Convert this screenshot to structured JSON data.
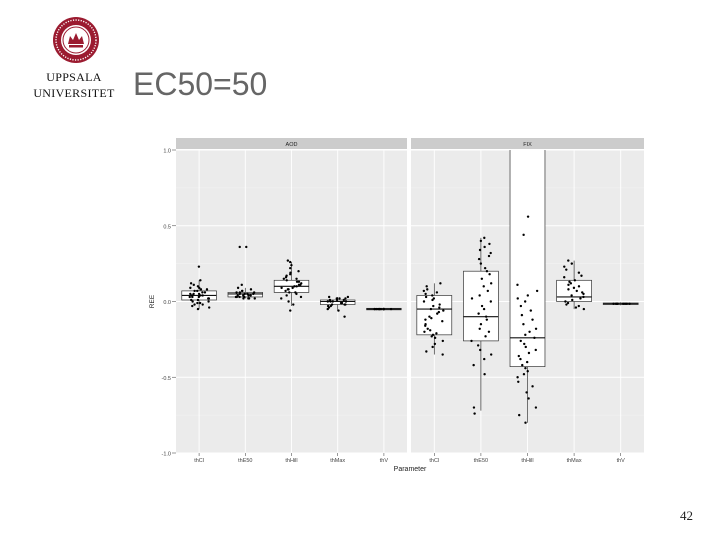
{
  "header": {
    "logo_line1": "UPPSALA",
    "logo_line2": "UNIVERSITET",
    "title": "EC50=50"
  },
  "page_number": "42",
  "colors": {
    "panel_bg": "#ebebeb",
    "strip_bg": "#cccccc",
    "grid": "#ffffff",
    "points": "#000000",
    "box_fill": "#ffffff",
    "seal": "#9b1b30"
  },
  "chart_data": {
    "type": "boxplot",
    "ylabel": "REE",
    "xlabel": "Parameter",
    "ylim": [
      -1.0,
      1.0
    ],
    "yticks": [
      "1.0",
      "0.5",
      "0.0",
      "-0.5",
      "-1.0"
    ],
    "ytick_values": [
      1.0,
      0.5,
      0.0,
      -0.5,
      -1.0
    ],
    "categories": [
      "thCl",
      "thE50",
      "thHill",
      "thMax",
      "thV"
    ],
    "grid": true,
    "legend": "none",
    "panels": [
      {
        "name": "AOD",
        "boxes": [
          {
            "category": "thCl",
            "q1": 0.01,
            "median": 0.04,
            "q3": 0.07,
            "whisker_low": -0.05,
            "whisker_high": 0.14,
            "points": [
              0.23,
              0.14,
              0.12,
              0.11,
              0.1,
              0.09,
              0.09,
              0.08,
              0.08,
              0.07,
              0.07,
              0.06,
              0.06,
              0.05,
              0.05,
              0.05,
              0.04,
              0.04,
              0.04,
              0.03,
              0.03,
              0.03,
              0.02,
              0.02,
              0.01,
              0.01,
              0.0,
              0.0,
              -0.01,
              -0.01,
              -0.02,
              -0.02,
              -0.03,
              -0.04,
              -0.05
            ]
          },
          {
            "category": "thE50",
            "q1": 0.03,
            "median": 0.05,
            "q3": 0.06,
            "whisker_low": 0.02,
            "whisker_high": 0.09,
            "points": [
              0.36,
              0.36,
              0.11,
              0.09,
              0.08,
              0.07,
              0.07,
              0.06,
              0.06,
              0.06,
              0.05,
              0.05,
              0.05,
              0.05,
              0.04,
              0.04,
              0.04,
              0.04,
              0.03,
              0.03,
              0.03,
              0.03,
              0.02,
              0.02,
              0.02,
              0.02
            ]
          },
          {
            "category": "thHill",
            "q1": 0.06,
            "median": 0.1,
            "q3": 0.14,
            "whisker_low": -0.03,
            "whisker_high": 0.26,
            "points": [
              0.27,
              0.26,
              0.24,
              0.22,
              0.2,
              0.19,
              0.18,
              0.17,
              0.16,
              0.15,
              0.15,
              0.14,
              0.13,
              0.13,
              0.12,
              0.11,
              0.11,
              0.1,
              0.1,
              0.09,
              0.09,
              0.08,
              0.08,
              0.07,
              0.06,
              0.06,
              0.05,
              0.04,
              0.03,
              0.02,
              0.0,
              -0.02,
              -0.06
            ]
          },
          {
            "category": "thMax",
            "q1": -0.02,
            "median": 0.0,
            "q3": 0.01,
            "whisker_low": -0.06,
            "whisker_high": 0.03,
            "points": [
              0.03,
              0.03,
              0.02,
              0.02,
              0.02,
              0.01,
              0.01,
              0.01,
              0.0,
              0.0,
              0.0,
              0.0,
              -0.01,
              -0.01,
              -0.01,
              -0.02,
              -0.02,
              -0.02,
              -0.03,
              -0.03,
              -0.04,
              -0.05,
              -0.06,
              -0.1
            ]
          },
          {
            "category": "thV",
            "q1": -0.055,
            "median": -0.05,
            "q3": -0.045,
            "whisker_low": -0.06,
            "whisker_high": -0.04,
            "points": [
              -0.05,
              -0.05,
              -0.05,
              -0.05,
              -0.05,
              -0.05,
              -0.05,
              -0.05,
              -0.05,
              -0.05
            ]
          }
        ]
      },
      {
        "name": "FIX",
        "boxes": [
          {
            "category": "thCl",
            "q1": -0.22,
            "median": -0.05,
            "q3": 0.04,
            "whisker_low": -0.35,
            "whisker_high": 0.12,
            "points": [
              0.12,
              0.1,
              0.08,
              0.07,
              0.06,
              0.05,
              0.04,
              0.03,
              0.02,
              0.01,
              0.0,
              -0.02,
              -0.03,
              -0.04,
              -0.05,
              -0.06,
              -0.07,
              -0.08,
              -0.1,
              -0.11,
              -0.12,
              -0.13,
              -0.15,
              -0.16,
              -0.18,
              -0.19,
              -0.2,
              -0.21,
              -0.22,
              -0.23,
              -0.24,
              -0.26,
              -0.28,
              -0.3,
              -0.33,
              -0.35
            ]
          },
          {
            "category": "thE50",
            "q1": -0.26,
            "median": -0.1,
            "q3": 0.2,
            "whisker_low": -0.72,
            "whisker_high": 0.42,
            "points": [
              0.42,
              0.4,
              0.38,
              0.36,
              0.34,
              0.32,
              0.3,
              0.28,
              0.25,
              0.22,
              0.2,
              0.18,
              0.15,
              0.12,
              0.1,
              0.07,
              0.04,
              0.02,
              0.0,
              -0.03,
              -0.05,
              -0.08,
              -0.1,
              -0.12,
              -0.15,
              -0.18,
              -0.2,
              -0.23,
              -0.26,
              -0.29,
              -0.32,
              -0.35,
              -0.38,
              -0.42,
              -0.48,
              -0.7,
              -0.74
            ]
          },
          {
            "category": "thHill",
            "q1": -0.43,
            "median": -0.24,
            "q3": 1.05,
            "whisker_low": -0.8,
            "whisker_high": 1.05,
            "points": [
              0.56,
              0.44,
              0.11,
              0.07,
              0.04,
              0.02,
              0.0,
              -0.03,
              -0.06,
              -0.09,
              -0.12,
              -0.15,
              -0.18,
              -0.2,
              -0.22,
              -0.24,
              -0.26,
              -0.28,
              -0.3,
              -0.32,
              -0.34,
              -0.36,
              -0.38,
              -0.4,
              -0.42,
              -0.44,
              -0.46,
              -0.48,
              -0.5,
              -0.53,
              -0.56,
              -0.6,
              -0.64,
              -0.7,
              -0.75,
              -0.8
            ]
          },
          {
            "category": "thMax",
            "q1": 0.0,
            "median": 0.03,
            "q3": 0.14,
            "whisker_low": -0.05,
            "whisker_high": 0.27,
            "points": [
              0.27,
              0.25,
              0.23,
              0.21,
              0.19,
              0.17,
              0.16,
              0.14,
              0.13,
              0.12,
              0.11,
              0.1,
              0.09,
              0.08,
              0.07,
              0.06,
              0.05,
              0.04,
              0.03,
              0.02,
              0.01,
              0.0,
              -0.01,
              -0.02,
              -0.03,
              -0.04,
              -0.05
            ]
          },
          {
            "category": "thV",
            "q1": -0.02,
            "median": -0.015,
            "q3": -0.01,
            "whisker_low": -0.025,
            "whisker_high": -0.005,
            "points": [
              -0.015,
              -0.015,
              -0.015,
              -0.015,
              -0.015,
              -0.015,
              -0.015,
              -0.015
            ]
          }
        ]
      }
    ]
  }
}
